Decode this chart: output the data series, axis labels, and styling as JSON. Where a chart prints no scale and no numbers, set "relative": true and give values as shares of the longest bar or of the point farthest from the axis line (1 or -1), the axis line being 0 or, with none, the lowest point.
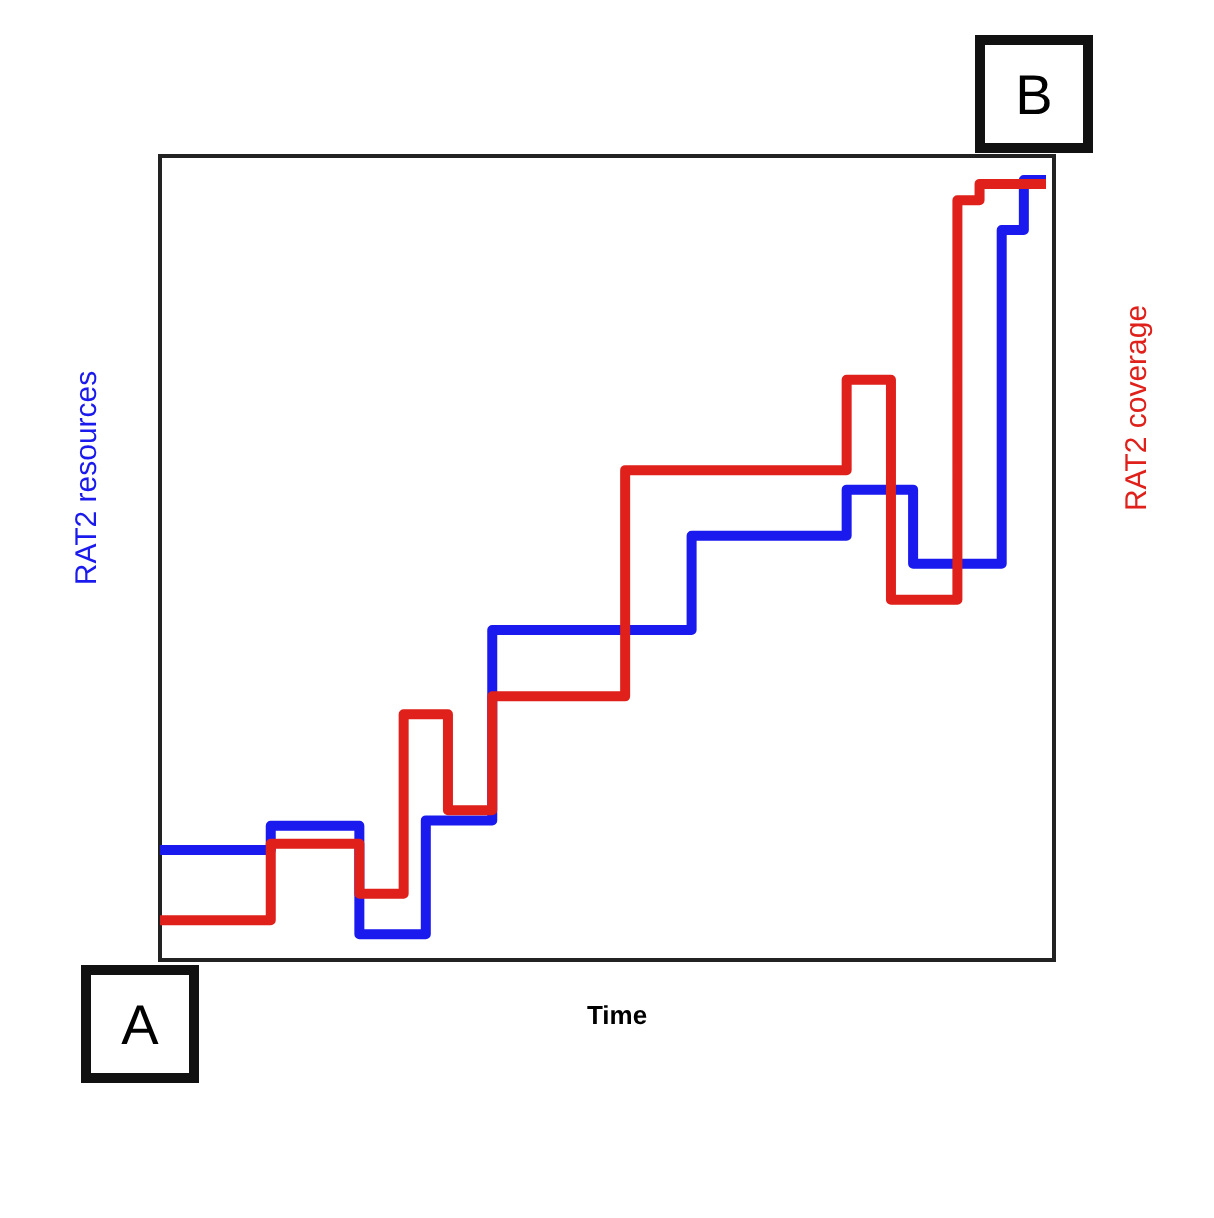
{
  "chart_data": {
    "type": "step",
    "relative": true,
    "xlabel": "Time",
    "ylabel": "RAT2 resources",
    "y2label": "RAT2 coverage",
    "line_style": "solid",
    "annotations": [
      "A",
      "B"
    ],
    "categories": [
      null,
      null,
      null,
      null,
      null,
      null,
      null,
      null,
      null,
      null,
      null,
      null,
      null,
      null,
      null,
      null,
      null,
      null,
      null,
      null,
      null,
      null,
      null,
      null,
      null,
      null,
      null,
      null,
      null,
      null,
      null,
      null,
      null,
      null,
      null,
      null,
      null,
      null,
      null,
      null,
      null
    ],
    "series": [
      {
        "color": "#1a1aee",
        "values": [
          0.141,
          0.141,
          0.141,
          0.141,
          0.141,
          0.172,
          0.172,
          0.172,
          0.172,
          0.033,
          0.033,
          0.033,
          0.179,
          0.179,
          0.179,
          0.423,
          0.423,
          0.423,
          0.423,
          0.423,
          0.423,
          0.423,
          0.423,
          0.423,
          0.544,
          0.544,
          0.544,
          0.544,
          0.544,
          0.544,
          0.544,
          0.603,
          0.603,
          0.603,
          0.508,
          0.508,
          0.508,
          0.508,
          0.936,
          1.0,
          1.0
        ]
      },
      {
        "color": "#e0201a",
        "values": [
          0.051,
          0.051,
          0.051,
          0.051,
          0.051,
          0.149,
          0.149,
          0.149,
          0.149,
          0.085,
          0.085,
          0.315,
          0.315,
          0.192,
          0.192,
          0.338,
          0.338,
          0.338,
          0.338,
          0.338,
          0.338,
          0.628,
          0.628,
          0.628,
          0.628,
          0.628,
          0.628,
          0.628,
          0.628,
          0.628,
          0.628,
          0.744,
          0.744,
          0.462,
          0.462,
          0.462,
          0.974,
          0.995,
          0.995,
          0.995,
          0.995
        ]
      }
    ]
  }
}
